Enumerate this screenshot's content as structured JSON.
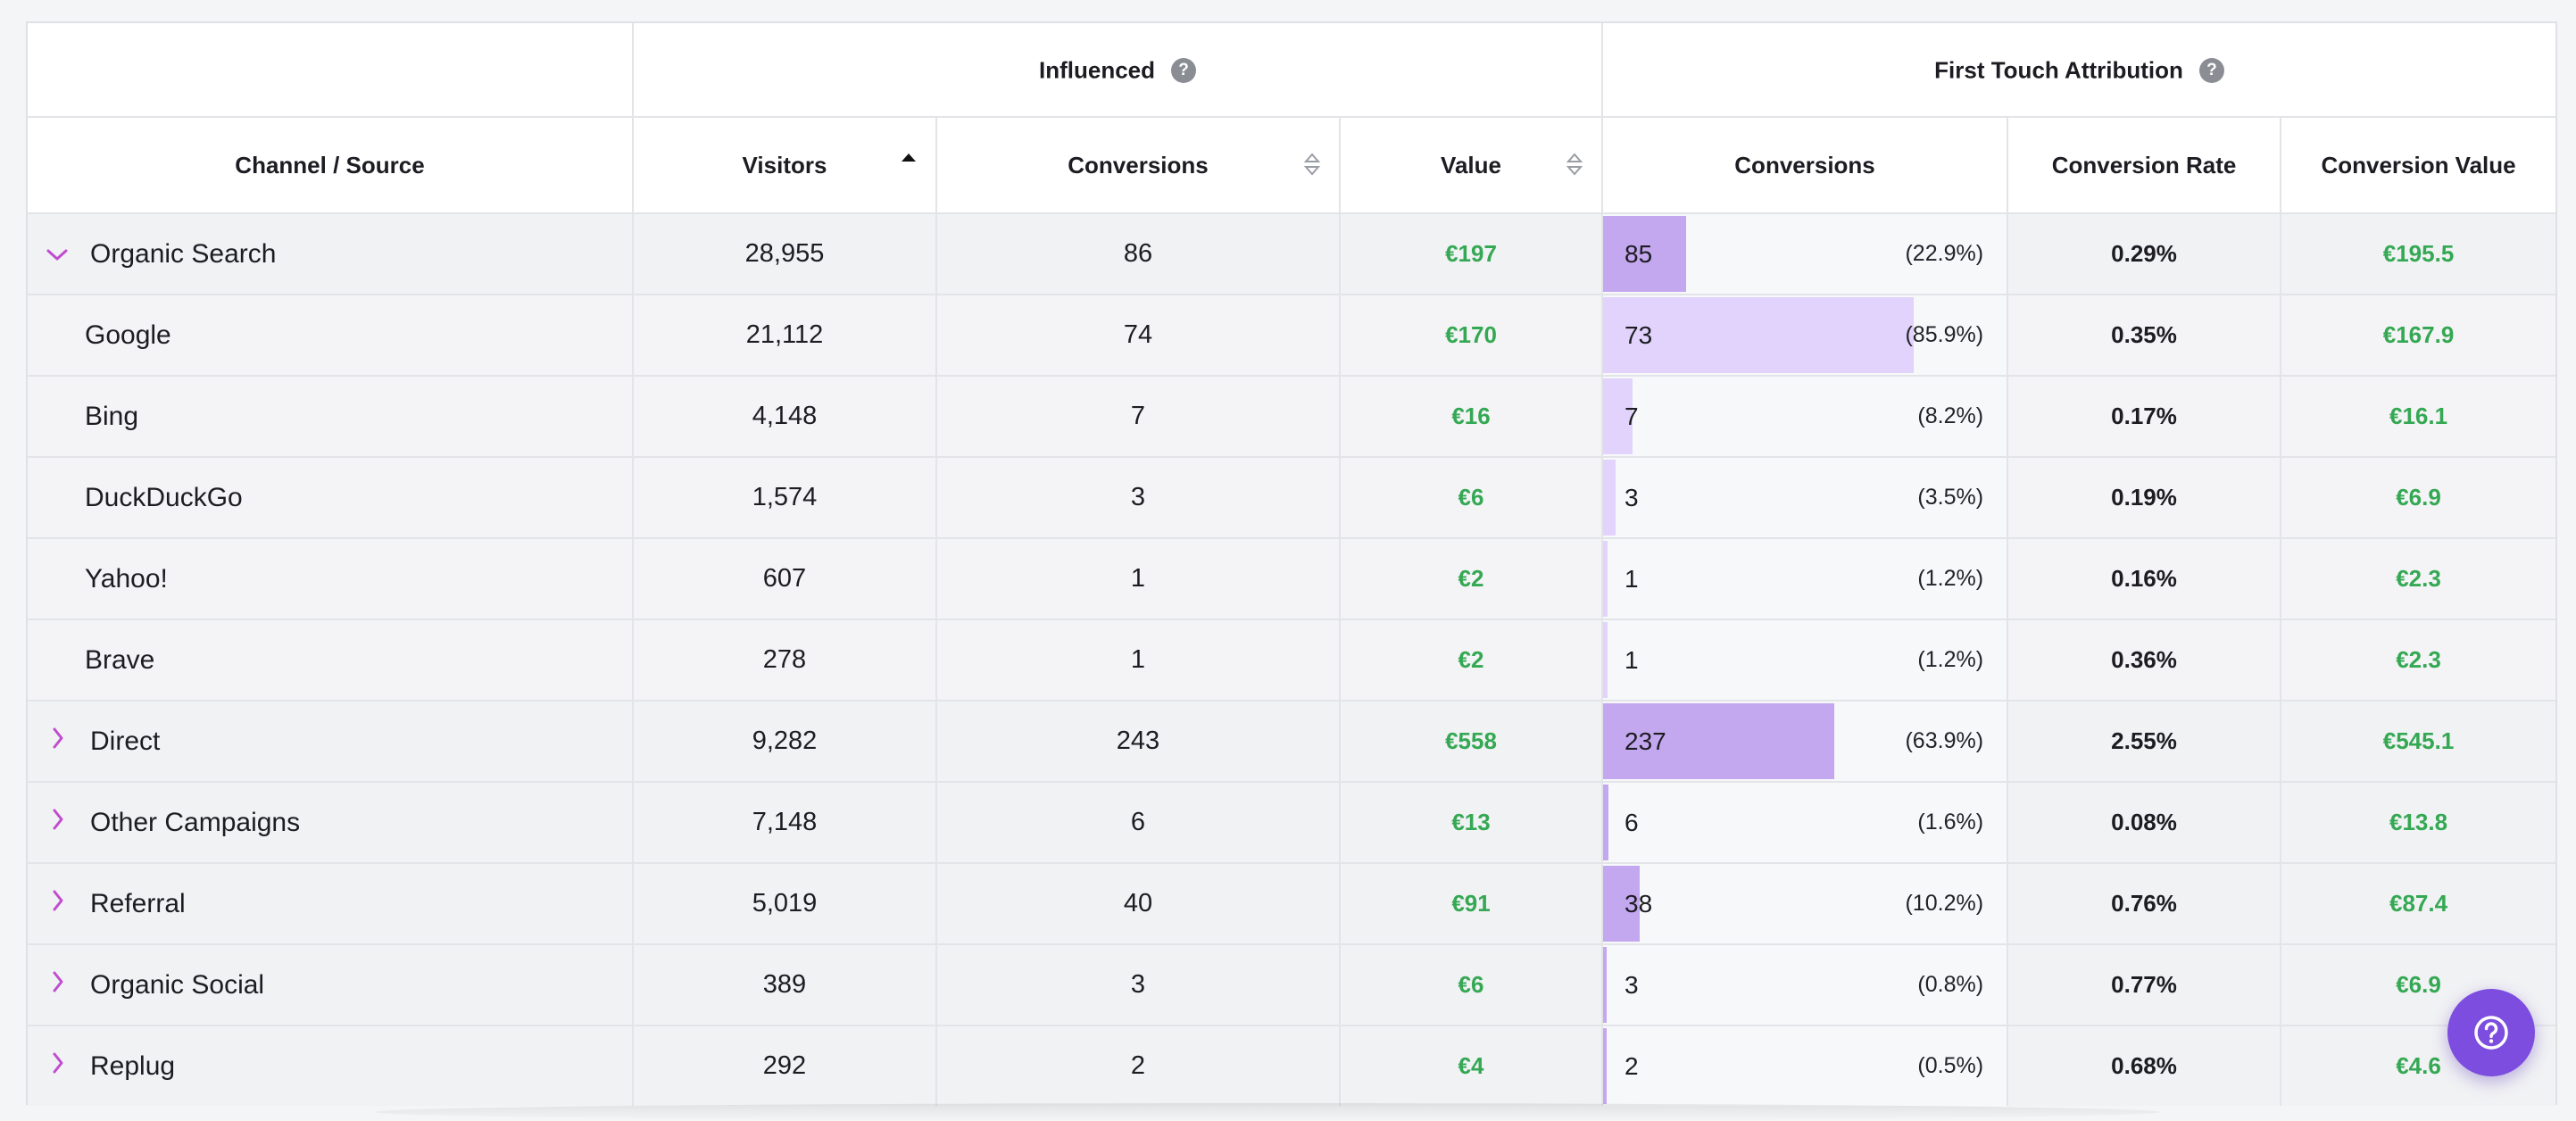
{
  "groups": {
    "influenced": "Influenced",
    "first_touch": "First Touch Attribution"
  },
  "columns": {
    "channel": "Channel / Source",
    "visitors": "Visitors",
    "conversions": "Conversions",
    "value": "Value",
    "ft_conversions": "Conversions",
    "conversion_rate": "Conversion Rate",
    "conversion_value": "Conversion Value"
  },
  "sort": {
    "column": "Visitors",
    "direction": "ascending"
  },
  "colors": {
    "bar_parent": "#c4a8ef",
    "bar_child": "#e1d3fb",
    "accent": "#7c4ddf",
    "green": "#34a853",
    "chevron": "#c04ccf"
  },
  "rows": [
    {
      "name": "Organic Search",
      "kind": "parent",
      "expanded": true,
      "visitors": "28,955",
      "conversions": "86",
      "value": "€197",
      "ft_conversions": "85",
      "ft_pct": "(22.9%)",
      "ft_share": 0.229,
      "rate": "0.29%",
      "conv_value": "€195.5"
    },
    {
      "name": "Google",
      "kind": "child",
      "visitors": "21,112",
      "conversions": "74",
      "value": "€170",
      "ft_conversions": "73",
      "ft_pct": "(85.9%)",
      "ft_share": 0.859,
      "rate": "0.35%",
      "conv_value": "€167.9"
    },
    {
      "name": "Bing",
      "kind": "child",
      "visitors": "4,148",
      "conversions": "7",
      "value": "€16",
      "ft_conversions": "7",
      "ft_pct": "(8.2%)",
      "ft_share": 0.082,
      "rate": "0.17%",
      "conv_value": "€16.1"
    },
    {
      "name": "DuckDuckGo",
      "kind": "child",
      "visitors": "1,574",
      "conversions": "3",
      "value": "€6",
      "ft_conversions": "3",
      "ft_pct": "(3.5%)",
      "ft_share": 0.035,
      "rate": "0.19%",
      "conv_value": "€6.9"
    },
    {
      "name": "Yahoo!",
      "kind": "child",
      "visitors": "607",
      "conversions": "1",
      "value": "€2",
      "ft_conversions": "1",
      "ft_pct": "(1.2%)",
      "ft_share": 0.012,
      "rate": "0.16%",
      "conv_value": "€2.3"
    },
    {
      "name": "Brave",
      "kind": "child",
      "visitors": "278",
      "conversions": "1",
      "value": "€2",
      "ft_conversions": "1",
      "ft_pct": "(1.2%)",
      "ft_share": 0.012,
      "rate": "0.36%",
      "conv_value": "€2.3"
    },
    {
      "name": "Direct",
      "kind": "parent",
      "expanded": false,
      "visitors": "9,282",
      "conversions": "243",
      "value": "€558",
      "ft_conversions": "237",
      "ft_pct": "(63.9%)",
      "ft_share": 0.639,
      "rate": "2.55%",
      "conv_value": "€545.1"
    },
    {
      "name": "Other Campaigns",
      "kind": "parent",
      "expanded": false,
      "visitors": "7,148",
      "conversions": "6",
      "value": "€13",
      "ft_conversions": "6",
      "ft_pct": "(1.6%)",
      "ft_share": 0.016,
      "rate": "0.08%",
      "conv_value": "€13.8"
    },
    {
      "name": "Referral",
      "kind": "parent",
      "expanded": false,
      "visitors": "5,019",
      "conversions": "40",
      "value": "€91",
      "ft_conversions": "38",
      "ft_pct": "(10.2%)",
      "ft_share": 0.102,
      "rate": "0.76%",
      "conv_value": "€87.4"
    },
    {
      "name": "Organic Social",
      "kind": "parent",
      "expanded": false,
      "visitors": "389",
      "conversions": "3",
      "value": "€6",
      "ft_conversions": "3",
      "ft_pct": "(0.8%)",
      "ft_share": 0.008,
      "rate": "0.77%",
      "conv_value": "€6.9"
    },
    {
      "name": "Replug",
      "kind": "parent",
      "expanded": false,
      "visitors": "292",
      "conversions": "2",
      "value": "€4",
      "ft_conversions": "2",
      "ft_pct": "(0.5%)",
      "ft_share": 0.005,
      "rate": "0.68%",
      "conv_value": "€4.6"
    }
  ],
  "icons": {
    "help": "question-circle-icon",
    "expanded": "chevron-down-icon",
    "collapsed": "chevron-right-icon",
    "sort_asc": "sort-ascending-icon",
    "sortable": "sort-both-icon",
    "fab": "help-circle-icon"
  }
}
